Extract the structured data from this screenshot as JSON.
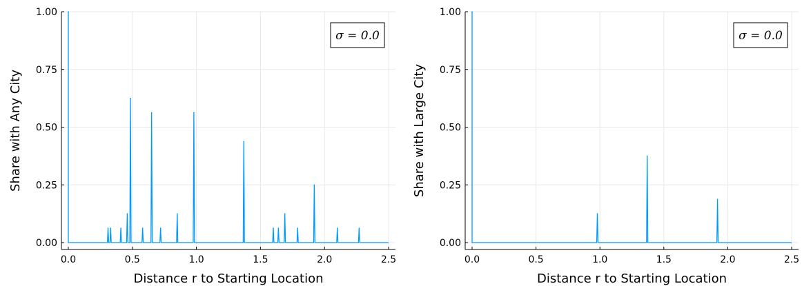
{
  "colors": {
    "series": "#009AFA",
    "grid": "#e8e8e8",
    "axis": "#000000"
  },
  "chart_data": [
    {
      "type": "line",
      "title": "",
      "xlabel": "Distance r to Starting Location",
      "ylabel": "Share with Any City",
      "xlim": [
        0,
        2.5
      ],
      "ylim": [
        0,
        1
      ],
      "x_ticks": [
        "0.0",
        "0.5",
        "1.0",
        "1.5",
        "2.0",
        "2.5"
      ],
      "y_ticks": [
        "0.00",
        "0.25",
        "0.50",
        "0.75",
        "1.00"
      ],
      "grid": true,
      "legend": {
        "label": "σ = 0.0",
        "placement": "top-right"
      },
      "series": [
        {
          "spikes": [
            {
              "x": 0.0,
              "y": 1.0
            },
            {
              "x": 0.31,
              "y": 0.0625
            },
            {
              "x": 0.33,
              "y": 0.0625
            },
            {
              "x": 0.41,
              "y": 0.0625
            },
            {
              "x": 0.46,
              "y": 0.125
            },
            {
              "x": 0.485,
              "y": 0.625
            },
            {
              "x": 0.58,
              "y": 0.0625
            },
            {
              "x": 0.65,
              "y": 0.5625
            },
            {
              "x": 0.72,
              "y": 0.0625
            },
            {
              "x": 0.85,
              "y": 0.125
            },
            {
              "x": 0.98,
              "y": 0.5625
            },
            {
              "x": 1.37,
              "y": 0.4375
            },
            {
              "x": 1.6,
              "y": 0.0625
            },
            {
              "x": 1.64,
              "y": 0.0625
            },
            {
              "x": 1.69,
              "y": 0.125
            },
            {
              "x": 1.79,
              "y": 0.0625
            },
            {
              "x": 1.92,
              "y": 0.25
            },
            {
              "x": 2.1,
              "y": 0.0625
            },
            {
              "x": 2.27,
              "y": 0.0625
            }
          ]
        }
      ]
    },
    {
      "type": "line",
      "title": "",
      "xlabel": "Distance r to Starting Location",
      "ylabel": "Share with Large City",
      "xlim": [
        0,
        2.5
      ],
      "ylim": [
        0,
        1
      ],
      "x_ticks": [
        "0.0",
        "0.5",
        "1.0",
        "1.5",
        "2.0",
        "2.5"
      ],
      "y_ticks": [
        "0.00",
        "0.25",
        "0.50",
        "0.75",
        "1.00"
      ],
      "grid": true,
      "legend": {
        "label": "σ = 0.0",
        "placement": "top-right"
      },
      "series": [
        {
          "spikes": [
            {
              "x": 0.0,
              "y": 1.0
            },
            {
              "x": 0.98,
              "y": 0.125
            },
            {
              "x": 1.37,
              "y": 0.375
            },
            {
              "x": 1.92,
              "y": 0.1875
            }
          ]
        }
      ]
    }
  ]
}
